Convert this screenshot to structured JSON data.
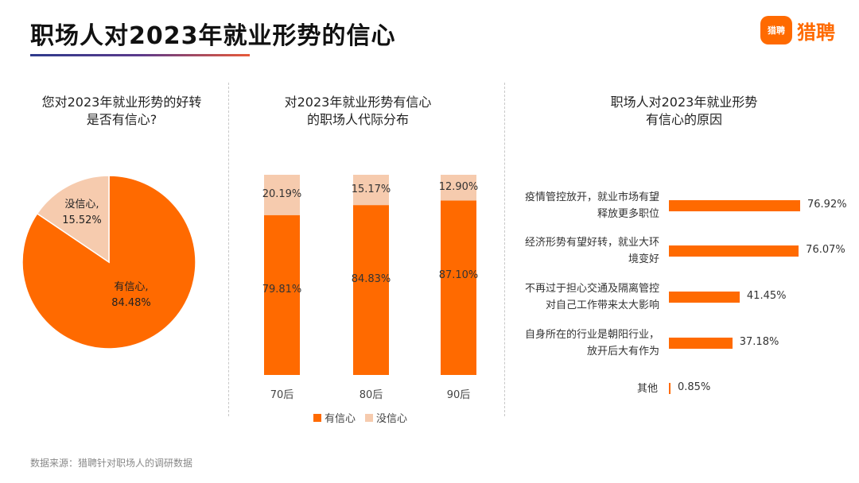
{
  "header": {
    "title": "职场人对2023年就业形势的信心",
    "logo_icon_text": "猎聘",
    "logo_text": "猎聘"
  },
  "colors": {
    "accent": "#ff6a00",
    "light": "#f6cbae"
  },
  "chart_data": [
    {
      "type": "pie",
      "title": "您对2023年就业形势的好转\n是否有信心?",
      "slices": [
        {
          "label": "有信心,",
          "value": 84.48,
          "display": "84.48%"
        },
        {
          "label": "没信心,",
          "value": 15.52,
          "display": "15.52%"
        }
      ]
    },
    {
      "type": "bar",
      "stacked": true,
      "title": "对2023年就业形势有信心\n的职场人代际分布",
      "categories": [
        "70后",
        "80后",
        "90后"
      ],
      "series": [
        {
          "name": "有信心",
          "values": [
            79.81,
            84.83,
            87.1
          ],
          "labels": [
            "79.81%",
            "84.83%",
            "87.10%"
          ]
        },
        {
          "name": "没信心",
          "values": [
            20.19,
            15.17,
            12.9
          ],
          "labels": [
            "20.19%",
            "15.17%",
            "12.90%"
          ]
        }
      ],
      "ylim": [
        0,
        100
      ]
    },
    {
      "type": "bar",
      "orientation": "horizontal",
      "title": "职场人对2023年就业形势\n有信心的原因",
      "categories": [
        [
          "疫情管控放开，就业市场有望",
          "释放更多职位"
        ],
        [
          "经济形势有望好转，就业大环",
          "境变好"
        ],
        [
          "不再过于担心交通及隔离管控",
          "对自己工作带来太大影响"
        ],
        [
          "自身所在的行业是朝阳行业，",
          "放开后大有作为"
        ],
        [
          "其他"
        ]
      ],
      "values": [
        76.92,
        76.07,
        41.45,
        37.18,
        0.85
      ],
      "labels": [
        "76.92%",
        "76.07%",
        "41.45%",
        "37.18%",
        "0.85%"
      ]
    }
  ],
  "footer": {
    "source": "数据来源：猎聘针对职场人的调研数据"
  }
}
